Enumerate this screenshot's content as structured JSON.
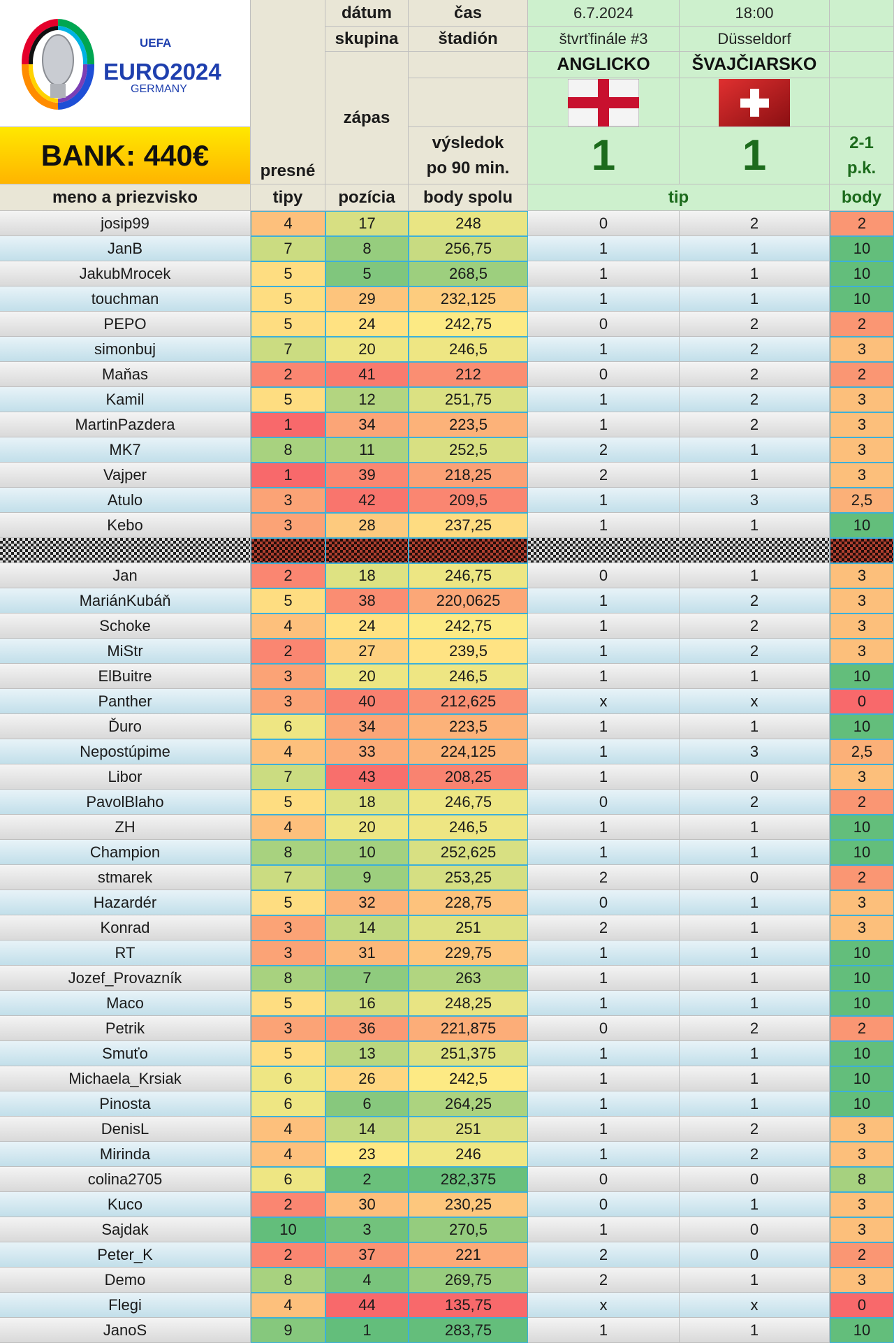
{
  "logo": {
    "uefa": "UEFA",
    "euro": "EURO2024",
    "germany": "GERMANY"
  },
  "bank": "BANK: 440€",
  "labels": {
    "datum": "dátum",
    "cas": "čas",
    "skupina": "skupina",
    "stadion": "štadión",
    "zapas": "zápas",
    "vysledok1": "výsledok",
    "vysledok2": "po 90 min.",
    "presne": "presné",
    "tipy": "tipy",
    "meno": "meno a priezvisko",
    "pozicia": "pozícia",
    "body_spolu": "body spolu",
    "tip": "tip",
    "body": "body"
  },
  "match": {
    "date": "6.7.2024",
    "time": "18:00",
    "stage": "štvrťfinále #3",
    "venue": "Düsseldorf",
    "team_home": "ANGLICKO",
    "team_away": "ŠVAJČIARSKO",
    "score_home": "1",
    "score_away": "1",
    "penalty_result": "2-1",
    "penalty_label": "p.k."
  },
  "colors": {
    "header_bg": "#e9e6d6",
    "match_bg": "#cdf0cd",
    "score_green": "#1c6b1c",
    "bank_yellow": "#ffd200",
    "cell_border": "#3db0d9"
  },
  "rows": [
    {
      "name": "josip99",
      "tipy": "4",
      "pozicia": "17",
      "body_spolu": "248",
      "tip1": "0",
      "tip2": "2",
      "body": "2"
    },
    {
      "name": "JanB",
      "tipy": "7",
      "pozicia": "8",
      "body_spolu": "256,75",
      "tip1": "1",
      "tip2": "1",
      "body": "10"
    },
    {
      "name": "JakubMrocek",
      "tipy": "5",
      "pozicia": "5",
      "body_spolu": "268,5",
      "tip1": "1",
      "tip2": "1",
      "body": "10"
    },
    {
      "name": "touchman",
      "tipy": "5",
      "pozicia": "29",
      "body_spolu": "232,125",
      "tip1": "1",
      "tip2": "1",
      "body": "10"
    },
    {
      "name": "PEPO",
      "tipy": "5",
      "pozicia": "24",
      "body_spolu": "242,75",
      "tip1": "0",
      "tip2": "2",
      "body": "2"
    },
    {
      "name": "simonbuj",
      "tipy": "7",
      "pozicia": "20",
      "body_spolu": "246,5",
      "tip1": "1",
      "tip2": "2",
      "body": "3"
    },
    {
      "name": "Maňas",
      "tipy": "2",
      "pozicia": "41",
      "body_spolu": "212",
      "tip1": "0",
      "tip2": "2",
      "body": "2"
    },
    {
      "name": "Kamil",
      "tipy": "5",
      "pozicia": "12",
      "body_spolu": "251,75",
      "tip1": "1",
      "tip2": "2",
      "body": "3"
    },
    {
      "name": "MartinPazdera",
      "tipy": "1",
      "pozicia": "34",
      "body_spolu": "223,5",
      "tip1": "1",
      "tip2": "2",
      "body": "3"
    },
    {
      "name": "MK7",
      "tipy": "8",
      "pozicia": "11",
      "body_spolu": "252,5",
      "tip1": "2",
      "tip2": "1",
      "body": "3"
    },
    {
      "name": "Vajper",
      "tipy": "1",
      "pozicia": "39",
      "body_spolu": "218,25",
      "tip1": "2",
      "tip2": "1",
      "body": "3"
    },
    {
      "name": "Atulo",
      "tipy": "3",
      "pozicia": "42",
      "body_spolu": "209,5",
      "tip1": "1",
      "tip2": "3",
      "body": "2,5"
    },
    {
      "name": "Kebo",
      "tipy": "3",
      "pozicia": "28",
      "body_spolu": "237,25",
      "tip1": "1",
      "tip2": "1",
      "body": "10"
    },
    {
      "name": "",
      "tipy": "",
      "pozicia": "",
      "body_spolu": "",
      "tip1": "",
      "tip2": "",
      "body": "",
      "eliminated": true
    },
    {
      "name": "Jan",
      "tipy": "2",
      "pozicia": "18",
      "body_spolu": "246,75",
      "tip1": "0",
      "tip2": "1",
      "body": "3"
    },
    {
      "name": "MariánKubáň",
      "tipy": "5",
      "pozicia": "38",
      "body_spolu": "220,0625",
      "tip1": "1",
      "tip2": "2",
      "body": "3"
    },
    {
      "name": "Schoke",
      "tipy": "4",
      "pozicia": "24",
      "body_spolu": "242,75",
      "tip1": "1",
      "tip2": "2",
      "body": "3"
    },
    {
      "name": "MiStr",
      "tipy": "2",
      "pozicia": "27",
      "body_spolu": "239,5",
      "tip1": "1",
      "tip2": "2",
      "body": "3"
    },
    {
      "name": "ElBuitre",
      "tipy": "3",
      "pozicia": "20",
      "body_spolu": "246,5",
      "tip1": "1",
      "tip2": "1",
      "body": "10"
    },
    {
      "name": "Panther",
      "tipy": "3",
      "pozicia": "40",
      "body_spolu": "212,625",
      "tip1": "x",
      "tip2": "x",
      "body": "0"
    },
    {
      "name": "Ďuro",
      "tipy": "6",
      "pozicia": "34",
      "body_spolu": "223,5",
      "tip1": "1",
      "tip2": "1",
      "body": "10"
    },
    {
      "name": "Nepostúpime",
      "tipy": "4",
      "pozicia": "33",
      "body_spolu": "224,125",
      "tip1": "1",
      "tip2": "3",
      "body": "2,5"
    },
    {
      "name": "Libor",
      "tipy": "7",
      "pozicia": "43",
      "body_spolu": "208,25",
      "tip1": "1",
      "tip2": "0",
      "body": "3"
    },
    {
      "name": "PavolBlaho",
      "tipy": "5",
      "pozicia": "18",
      "body_spolu": "246,75",
      "tip1": "0",
      "tip2": "2",
      "body": "2"
    },
    {
      "name": "ZH",
      "tipy": "4",
      "pozicia": "20",
      "body_spolu": "246,5",
      "tip1": "1",
      "tip2": "1",
      "body": "10"
    },
    {
      "name": "Champion",
      "tipy": "8",
      "pozicia": "10",
      "body_spolu": "252,625",
      "tip1": "1",
      "tip2": "1",
      "body": "10"
    },
    {
      "name": "stmarek",
      "tipy": "7",
      "pozicia": "9",
      "body_spolu": "253,25",
      "tip1": "2",
      "tip2": "0",
      "body": "2"
    },
    {
      "name": "Hazardér",
      "tipy": "5",
      "pozicia": "32",
      "body_spolu": "228,75",
      "tip1": "0",
      "tip2": "1",
      "body": "3"
    },
    {
      "name": "Konrad",
      "tipy": "3",
      "pozicia": "14",
      "body_spolu": "251",
      "tip1": "2",
      "tip2": "1",
      "body": "3"
    },
    {
      "name": "RT",
      "tipy": "3",
      "pozicia": "31",
      "body_spolu": "229,75",
      "tip1": "1",
      "tip2": "1",
      "body": "10"
    },
    {
      "name": "Jozef_Provazník",
      "tipy": "8",
      "pozicia": "7",
      "body_spolu": "263",
      "tip1": "1",
      "tip2": "1",
      "body": "10"
    },
    {
      "name": "Maco",
      "tipy": "5",
      "pozicia": "16",
      "body_spolu": "248,25",
      "tip1": "1",
      "tip2": "1",
      "body": "10"
    },
    {
      "name": "Petrik",
      "tipy": "3",
      "pozicia": "36",
      "body_spolu": "221,875",
      "tip1": "0",
      "tip2": "2",
      "body": "2"
    },
    {
      "name": "Smuťo",
      "tipy": "5",
      "pozicia": "13",
      "body_spolu": "251,375",
      "tip1": "1",
      "tip2": "1",
      "body": "10"
    },
    {
      "name": "Michaela_Krsiak",
      "tipy": "6",
      "pozicia": "26",
      "body_spolu": "242,5",
      "tip1": "1",
      "tip2": "1",
      "body": "10"
    },
    {
      "name": "Pinosta",
      "tipy": "6",
      "pozicia": "6",
      "body_spolu": "264,25",
      "tip1": "1",
      "tip2": "1",
      "body": "10"
    },
    {
      "name": "DenisL",
      "tipy": "4",
      "pozicia": "14",
      "body_spolu": "251",
      "tip1": "1",
      "tip2": "2",
      "body": "3"
    },
    {
      "name": "Mirinda",
      "tipy": "4",
      "pozicia": "23",
      "body_spolu": "246",
      "tip1": "1",
      "tip2": "2",
      "body": "3"
    },
    {
      "name": "colina2705",
      "tipy": "6",
      "pozicia": "2",
      "body_spolu": "282,375",
      "tip1": "0",
      "tip2": "0",
      "body": "8"
    },
    {
      "name": "Kuco",
      "tipy": "2",
      "pozicia": "30",
      "body_spolu": "230,25",
      "tip1": "0",
      "tip2": "1",
      "body": "3"
    },
    {
      "name": "Sajdak",
      "tipy": "10",
      "pozicia": "3",
      "body_spolu": "270,5",
      "tip1": "1",
      "tip2": "0",
      "body": "3"
    },
    {
      "name": "Peter_K",
      "tipy": "2",
      "pozicia": "37",
      "body_spolu": "221",
      "tip1": "2",
      "tip2": "0",
      "body": "2"
    },
    {
      "name": "Demo",
      "tipy": "8",
      "pozicia": "4",
      "body_spolu": "269,75",
      "tip1": "2",
      "tip2": "1",
      "body": "3"
    },
    {
      "name": "Flegi",
      "tipy": "4",
      "pozicia": "44",
      "body_spolu": "135,75",
      "tip1": "x",
      "tip2": "x",
      "body": "0"
    },
    {
      "name": "JanoS",
      "tipy": "9",
      "pozicia": "1",
      "body_spolu": "283,75",
      "tip1": "1",
      "tip2": "1",
      "body": "10"
    }
  ]
}
